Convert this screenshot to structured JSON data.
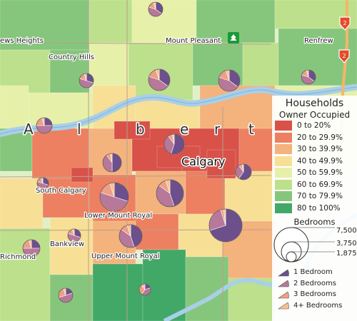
{
  "map": {
    "place_labels": [
      "ews Heights",
      "Country Hills",
      "Mount Pleasant",
      "Renfrew",
      "South Calgary",
      "Lower Mount Royal",
      "Bankview",
      "Upper Mount Royal",
      "Richmond"
    ],
    "city_label": "Calgary",
    "province_letters": [
      "A",
      "l",
      "b",
      "e",
      "r",
      "t"
    ],
    "highway_shields": [
      "2",
      "2"
    ]
  },
  "legend": {
    "title": "Households",
    "subtitle": "Owner Occupied",
    "classes": [
      {
        "label": "0 to 20%",
        "color": "#d8524a"
      },
      {
        "label": "20 to 29.9%",
        "color": "#ec8060"
      },
      {
        "label": "30 to 39.9%",
        "color": "#f4b27c"
      },
      {
        "label": "40 to 49.9%",
        "color": "#f7df96"
      },
      {
        "label": "50 to 59.9%",
        "color": "#e6f0a8"
      },
      {
        "label": "60 to 69.9%",
        "color": "#bde08c"
      },
      {
        "label": "70 to 79.9%",
        "color": "#86c67c"
      },
      {
        "label": "80 to 100%",
        "color": "#42a868"
      }
    ],
    "size_title": "Bedrooms",
    "size_values": [
      "7,500",
      "3,750",
      "1,875"
    ],
    "pie_categories": [
      {
        "label": "1 Bedroom",
        "color": "#6d4f8c"
      },
      {
        "label": "2 Bedrooms",
        "color": "#b7789a"
      },
      {
        "label": "3 Bedrooms",
        "color": "#ee9f84"
      },
      {
        "label": "4+ Bedrooms",
        "color": "#f6c090"
      }
    ],
    "river_color": "#a9cfe8"
  }
}
